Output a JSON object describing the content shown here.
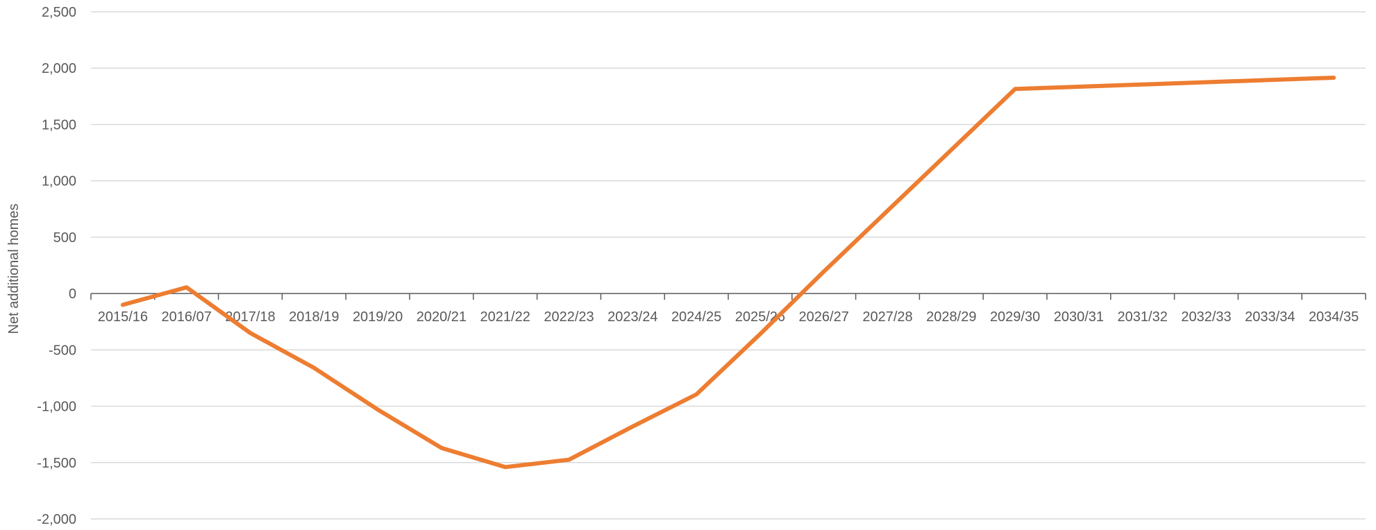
{
  "chart_data": {
    "type": "line",
    "title": "",
    "xlabel": "",
    "ylabel": "Net additional homes",
    "ylim": [
      -2000,
      2500
    ],
    "yticks": [
      2500,
      2000,
      1500,
      1000,
      500,
      0,
      -500,
      -1000,
      -1500,
      -2000
    ],
    "ytick_labels": [
      "2,500",
      "2,000",
      "1,500",
      "1,000",
      "500",
      "0",
      "-500",
      "-1,000",
      "-1,500",
      "-2,000"
    ],
    "grid": true,
    "legend": "none",
    "categories": [
      "2015/16",
      "2016/07",
      "2017/18",
      "2018/19",
      "2019/20",
      "2020/21",
      "2021/22",
      "2022/23",
      "2023/24",
      "2024/25",
      "2025/26",
      "2026/27",
      "2027/28",
      "2028/29",
      "2029/30",
      "2030/31",
      "2031/32",
      "2032/33",
      "2033/34",
      "2034/35"
    ],
    "series": [
      {
        "color": "#ED7D31",
        "values": [
          -100,
          55,
          -350,
          -660,
          -1030,
          -1370,
          -1540,
          -1475,
          -1180,
          -895,
          -360,
          195,
          735,
          1275,
          1815,
          1835,
          1855,
          1875,
          1895,
          1915
        ]
      }
    ],
    "colors": {
      "line": "#ED7D31",
      "grid": "#d9d9d9",
      "axis": "#595959",
      "text": "#595959"
    }
  }
}
